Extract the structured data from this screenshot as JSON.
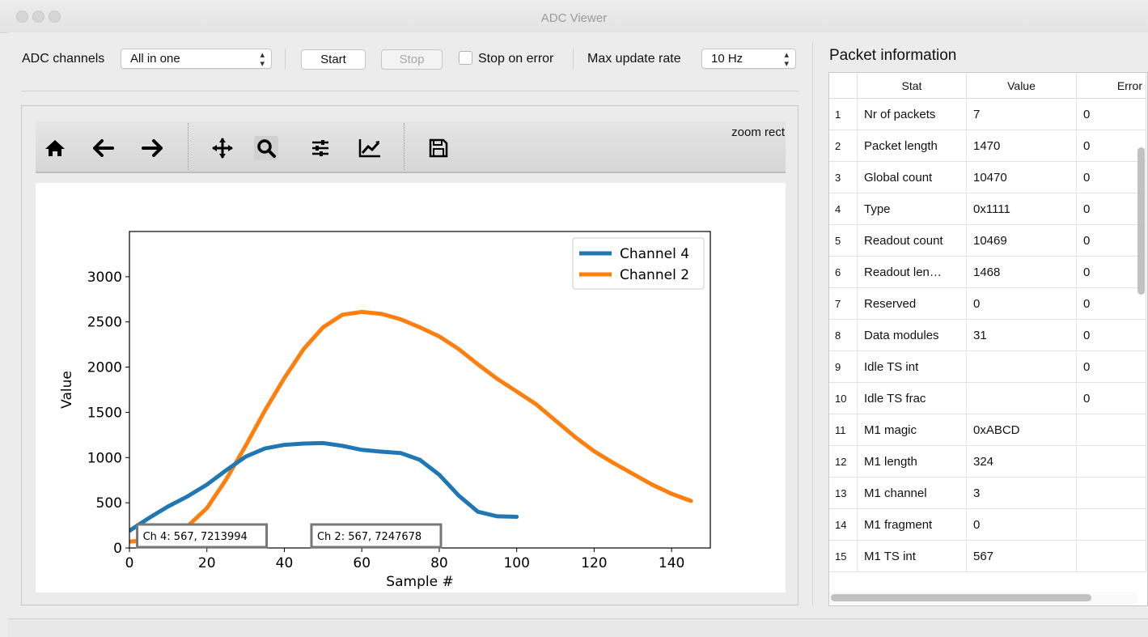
{
  "window": {
    "title": "ADC Viewer"
  },
  "controls": {
    "adc_channels_label": "ADC channels",
    "adc_channels_value": "All in one",
    "start_label": "Start",
    "stop_label": "Stop",
    "stop_on_error_label": "Stop on error",
    "stop_on_error_checked": false,
    "max_rate_label": "Max update rate",
    "max_rate_value": "10 Hz"
  },
  "plot_toolbar": {
    "icons": [
      "home-icon",
      "back-arrow-icon",
      "forward-arrow-icon",
      "pan-icon",
      "zoom-icon",
      "configure-subplots-icon",
      "edit-axis-icon",
      "save-icon"
    ],
    "active": "zoom-icon",
    "mode_label": "zoom rect"
  },
  "chart_data": {
    "type": "line",
    "xlabel": "Sample #",
    "ylabel": "Value",
    "xlim": [
      0,
      150
    ],
    "ylim": [
      0,
      3500
    ],
    "xticks": [
      0,
      20,
      40,
      60,
      80,
      100,
      120,
      140
    ],
    "yticks": [
      0,
      500,
      1000,
      1500,
      2000,
      2500,
      3000
    ],
    "legend_position": "top-right",
    "series": [
      {
        "name": "Channel 4",
        "color": "#1f77b4",
        "x": [
          0,
          5,
          10,
          15,
          20,
          25,
          30,
          35,
          40,
          45,
          50,
          55,
          60,
          65,
          70,
          75,
          80,
          85,
          90,
          95,
          100
        ],
        "values": [
          190,
          330,
          460,
          570,
          700,
          860,
          1010,
          1100,
          1140,
          1155,
          1160,
          1130,
          1085,
          1065,
          1050,
          975,
          810,
          580,
          400,
          350,
          345
        ]
      },
      {
        "name": "Channel 2",
        "color": "#ff7f0e",
        "x": [
          0,
          5,
          10,
          15,
          20,
          25,
          30,
          35,
          40,
          45,
          50,
          55,
          60,
          65,
          70,
          75,
          80,
          85,
          90,
          95,
          100,
          105,
          110,
          115,
          120,
          125,
          130,
          135,
          140,
          145
        ],
        "values": [
          70,
          90,
          140,
          240,
          440,
          760,
          1130,
          1520,
          1880,
          2200,
          2440,
          2580,
          2610,
          2590,
          2530,
          2440,
          2340,
          2200,
          2030,
          1870,
          1730,
          1590,
          1410,
          1230,
          1070,
          940,
          820,
          700,
          600,
          520
        ]
      }
    ],
    "annotations": [
      "Ch 4: 567, 7213994",
      "Ch 2: 567, 7247678"
    ]
  },
  "packet_info": {
    "title": "Packet information",
    "columns": [
      "Stat",
      "Value",
      "Error"
    ],
    "rows": [
      {
        "n": "1",
        "stat": "Nr of packets",
        "value": "7",
        "error": "0"
      },
      {
        "n": "2",
        "stat": "Packet length",
        "value": "1470",
        "error": "0"
      },
      {
        "n": "3",
        "stat": "Global count",
        "value": "10470",
        "error": "0"
      },
      {
        "n": "4",
        "stat": "Type",
        "value": "0x1111",
        "error": "0"
      },
      {
        "n": "5",
        "stat": "Readout count",
        "value": "10469",
        "error": "0"
      },
      {
        "n": "6",
        "stat": "Readout len…",
        "value": "1468",
        "error": "0"
      },
      {
        "n": "7",
        "stat": "Reserved",
        "value": "0",
        "error": "0"
      },
      {
        "n": "8",
        "stat": "Data modules",
        "value": "31",
        "error": "0"
      },
      {
        "n": "9",
        "stat": "Idle TS int",
        "value": "",
        "error": "0"
      },
      {
        "n": "10",
        "stat": "Idle TS frac",
        "value": "",
        "error": "0"
      },
      {
        "n": "11",
        "stat": "M1 magic",
        "value": "0xABCD",
        "error": ""
      },
      {
        "n": "12",
        "stat": "M1 length",
        "value": "324",
        "error": ""
      },
      {
        "n": "13",
        "stat": "M1 channel",
        "value": "3",
        "error": ""
      },
      {
        "n": "14",
        "stat": "M1 fragment",
        "value": "0",
        "error": ""
      },
      {
        "n": "15",
        "stat": "M1 TS int",
        "value": "567",
        "error": ""
      }
    ]
  }
}
